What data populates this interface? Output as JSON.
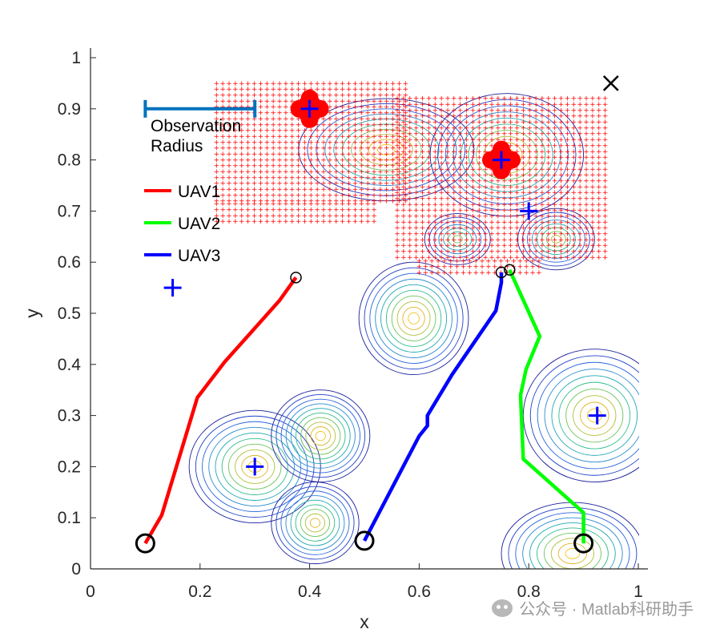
{
  "chart_data": {
    "type": "line",
    "title": "",
    "xlabel": "x",
    "ylabel": "y",
    "xlim": [
      0,
      1
    ],
    "ylim": [
      0,
      1
    ],
    "x_ticks": [
      "0",
      "0.2",
      "0.4",
      "0.6",
      "0.8",
      "1"
    ],
    "x_tick_values": [
      0,
      0.2,
      0.4,
      0.6,
      0.8,
      1
    ],
    "y_ticks": [
      "0",
      "0.1",
      "0.2",
      "0.3",
      "0.4",
      "0.5",
      "0.6",
      "0.7",
      "0.8",
      "0.9",
      "1"
    ],
    "y_tick_values": [
      0,
      0.1,
      0.2,
      0.3,
      0.4,
      0.5,
      0.6,
      0.7,
      0.8,
      0.9,
      1
    ],
    "grid": false,
    "legend_position": "upper-left",
    "observation_label_line1": "Observation",
    "observation_label_line2": "Radius",
    "observation_bar": {
      "x_start": 0.1,
      "x_end": 0.3,
      "y": 0.9,
      "color": "#0072BD"
    },
    "series": [
      {
        "name": "UAV1",
        "color": "#FF0000",
        "x": [
          0.1,
          0.13,
          0.195,
          0.245,
          0.295,
          0.345,
          0.375
        ],
        "y": [
          0.05,
          0.105,
          0.335,
          0.405,
          0.465,
          0.525,
          0.57
        ],
        "start": [
          0.1,
          0.05
        ],
        "end": [
          0.375,
          0.57
        ]
      },
      {
        "name": "UAV2",
        "color": "#00FF00",
        "x": [
          0.9,
          0.9,
          0.79,
          0.785,
          0.795,
          0.82,
          0.765
        ],
        "y": [
          0.05,
          0.11,
          0.215,
          0.34,
          0.39,
          0.455,
          0.585
        ],
        "start": [
          0.9,
          0.05
        ],
        "end": [
          0.765,
          0.585
        ]
      },
      {
        "name": "UAV3",
        "color": "#0000FF",
        "x": [
          0.5,
          0.6,
          0.615,
          0.615,
          0.66,
          0.74,
          0.75,
          0.75
        ],
        "y": [
          0.055,
          0.26,
          0.28,
          0.3,
          0.38,
          0.505,
          0.56,
          0.58
        ],
        "start": [
          0.5,
          0.055
        ],
        "end": [
          0.75,
          0.58
        ]
      }
    ],
    "targets": [
      [
        0.3,
        0.2
      ],
      [
        0.15,
        0.55
      ],
      [
        0.925,
        0.3
      ],
      [
        0.4,
        0.9
      ],
      [
        0.75,
        0.8
      ],
      [
        0.8,
        0.7
      ]
    ],
    "target_color": "#0000FF",
    "goal_marker": {
      "x": 0.95,
      "y": 0.95,
      "symbol": "×",
      "color": "#000000"
    },
    "observed_target_blobs": [
      [
        0.4,
        0.9
      ],
      [
        0.75,
        0.8
      ]
    ],
    "observed_blob_color": "#FF0000",
    "contour_peaks": [
      {
        "x": 0.3,
        "y": 0.2,
        "rx": 0.12,
        "ry": 0.11,
        "levels": 10
      },
      {
        "x": 0.42,
        "y": 0.26,
        "rx": 0.09,
        "ry": 0.09,
        "levels": 10
      },
      {
        "x": 0.41,
        "y": 0.09,
        "rx": 0.08,
        "ry": 0.08,
        "levels": 9
      },
      {
        "x": 0.59,
        "y": 0.49,
        "rx": 0.1,
        "ry": 0.11,
        "levels": 10
      },
      {
        "x": 0.54,
        "y": 0.82,
        "rx": 0.16,
        "ry": 0.1,
        "levels": 10
      },
      {
        "x": 0.76,
        "y": 0.81,
        "rx": 0.14,
        "ry": 0.12,
        "levels": 10
      },
      {
        "x": 0.67,
        "y": 0.645,
        "rx": 0.06,
        "ry": 0.05,
        "levels": 7
      },
      {
        "x": 0.85,
        "y": 0.645,
        "rx": 0.07,
        "ry": 0.06,
        "levels": 8
      },
      {
        "x": 0.92,
        "y": 0.3,
        "rx": 0.13,
        "ry": 0.13,
        "levels": 10
      },
      {
        "x": 0.88,
        "y": 0.03,
        "rx": 0.13,
        "ry": 0.1,
        "levels": 10
      }
    ],
    "contour_colors": [
      "#1a1f9b",
      "#2040c8",
      "#2a64e0",
      "#2a8ad0",
      "#1fa8b4",
      "#2ebd8c",
      "#6cc45a",
      "#b0c13a",
      "#e0b528",
      "#f5c518"
    ],
    "dot_field_color": "#FF0000"
  },
  "watermark": "公众号 · Matlab科研助手"
}
